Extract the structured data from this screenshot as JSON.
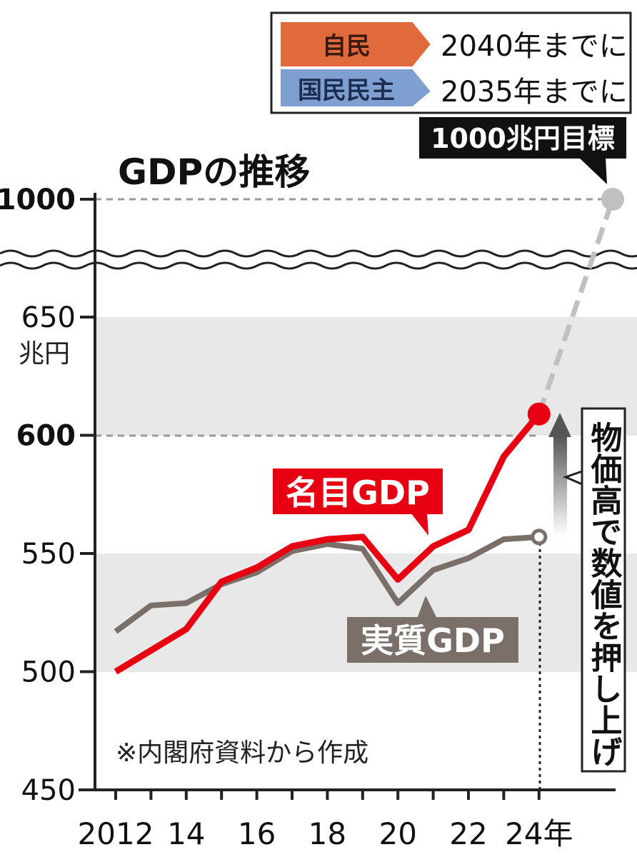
{
  "chart_data": {
    "type": "line",
    "title": "GDPの推移",
    "unit_label": "兆円",
    "x": [
      2012,
      2013,
      2014,
      2015,
      2016,
      2017,
      2018,
      2019,
      2020,
      2021,
      2022,
      2023,
      2024
    ],
    "x_ticks": [
      {
        "value": 2012,
        "label": "2012"
      },
      {
        "value": 2014,
        "label": "14"
      },
      {
        "value": 2016,
        "label": "16"
      },
      {
        "value": 2018,
        "label": "18"
      },
      {
        "value": 2020,
        "label": "20"
      },
      {
        "value": 2022,
        "label": "22"
      },
      {
        "value": 2024,
        "label": "24年"
      }
    ],
    "y_ticks": [
      {
        "value": 450,
        "label": "450",
        "bold": false
      },
      {
        "value": 500,
        "label": "500",
        "bold": false
      },
      {
        "value": 550,
        "label": "550",
        "bold": false
      },
      {
        "value": 600,
        "label": "600",
        "bold": true
      },
      {
        "value": 650,
        "label": "650",
        "bold": false
      },
      {
        "value": 1000,
        "label": "1000",
        "bold": true
      }
    ],
    "ylim": [
      450,
      650
    ],
    "axis_break": true,
    "target_value": 1000,
    "series": [
      {
        "name": "名目GDP",
        "color": "#e60012",
        "values": [
          500,
          509,
          518,
          538,
          544,
          553,
          556,
          557,
          539,
          553,
          560,
          591,
          609
        ]
      },
      {
        "name": "実質GDP",
        "color": "#7a6f69",
        "values": [
          517,
          528,
          529,
          537,
          542,
          551,
          554,
          552,
          529,
          543,
          548,
          556,
          557
        ]
      }
    ],
    "projection": {
      "from_x": 2024,
      "from_value": 609,
      "to_value": 1000,
      "color": "#c0c0c0"
    },
    "bands": [
      [
        500,
        550
      ],
      [
        600,
        650
      ]
    ],
    "annotations": {
      "target_label": "1000兆円目標",
      "inflation_note": "物価高で数値を押し上げ",
      "source": "※内閣府資料から作成"
    },
    "legend": [
      {
        "party": "自民",
        "color": "#e06a3c",
        "text": "2040年までに"
      },
      {
        "party": "国民民主",
        "color": "#7f9fd0",
        "text": "2035年までに"
      }
    ]
  }
}
